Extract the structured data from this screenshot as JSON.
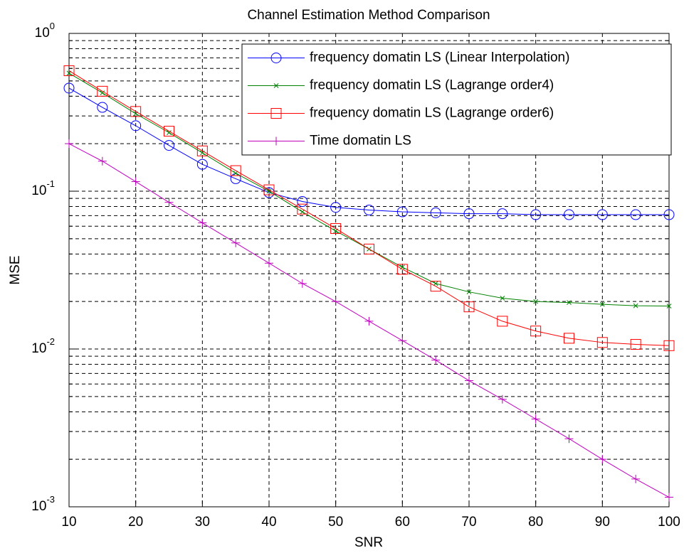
{
  "chart_data": {
    "type": "line",
    "title": "Channel Estimation Method Comparison",
    "x_label": "SNR",
    "y_label": "MSE",
    "y_scale": "log",
    "grid": true,
    "legend": "top-right",
    "x": [
      10,
      15,
      20,
      25,
      30,
      35,
      40,
      45,
      50,
      55,
      60,
      65,
      70,
      75,
      80,
      85,
      90,
      95,
      100
    ],
    "xlim": [
      10,
      100
    ],
    "xticks": [
      10,
      20,
      30,
      40,
      50,
      60,
      70,
      80,
      90,
      100
    ],
    "ylim": [
      0.001,
      1
    ],
    "yticks": [
      {
        "value": 0.001,
        "label": "10^-3"
      },
      {
        "value": 0.01,
        "label": "10^-2"
      },
      {
        "value": 0.1,
        "label": "10^-1"
      },
      {
        "value": 1,
        "label": "10^0"
      }
    ],
    "series": [
      {
        "name": "frequency domatin LS (Linear Interpolation)",
        "color": "#0000ff",
        "marker": "circle",
        "values": [
          0.45,
          0.34,
          0.26,
          0.195,
          0.148,
          0.12,
          0.098,
          0.086,
          0.079,
          0.076,
          0.074,
          0.073,
          0.072,
          0.072,
          0.071,
          0.071,
          0.071,
          0.071,
          0.071
        ]
      },
      {
        "name": "frequency domatin LS (Lagrange order4)",
        "color": "#008000",
        "marker": "x",
        "values": [
          0.56,
          0.42,
          0.31,
          0.235,
          0.175,
          0.13,
          0.1,
          0.074,
          0.056,
          0.043,
          0.033,
          0.026,
          0.023,
          0.021,
          0.02,
          0.0197,
          0.0192,
          0.0188,
          0.0187
        ]
      },
      {
        "name": "frequency domatin LS (Lagrange order6)",
        "color": "#ff0000",
        "marker": "square",
        "values": [
          0.58,
          0.43,
          0.32,
          0.24,
          0.18,
          0.135,
          0.102,
          0.077,
          0.058,
          0.043,
          0.032,
          0.025,
          0.0185,
          0.015,
          0.013,
          0.0117,
          0.011,
          0.0107,
          0.0105
        ]
      },
      {
        "name": "Time domatin LS",
        "color": "#bf00bf",
        "marker": "plus",
        "values": [
          0.2,
          0.155,
          0.115,
          0.085,
          0.063,
          0.047,
          0.035,
          0.026,
          0.02,
          0.015,
          0.0113,
          0.0085,
          0.0063,
          0.0048,
          0.0036,
          0.0027,
          0.002,
          0.0015,
          0.00115
        ]
      }
    ]
  }
}
